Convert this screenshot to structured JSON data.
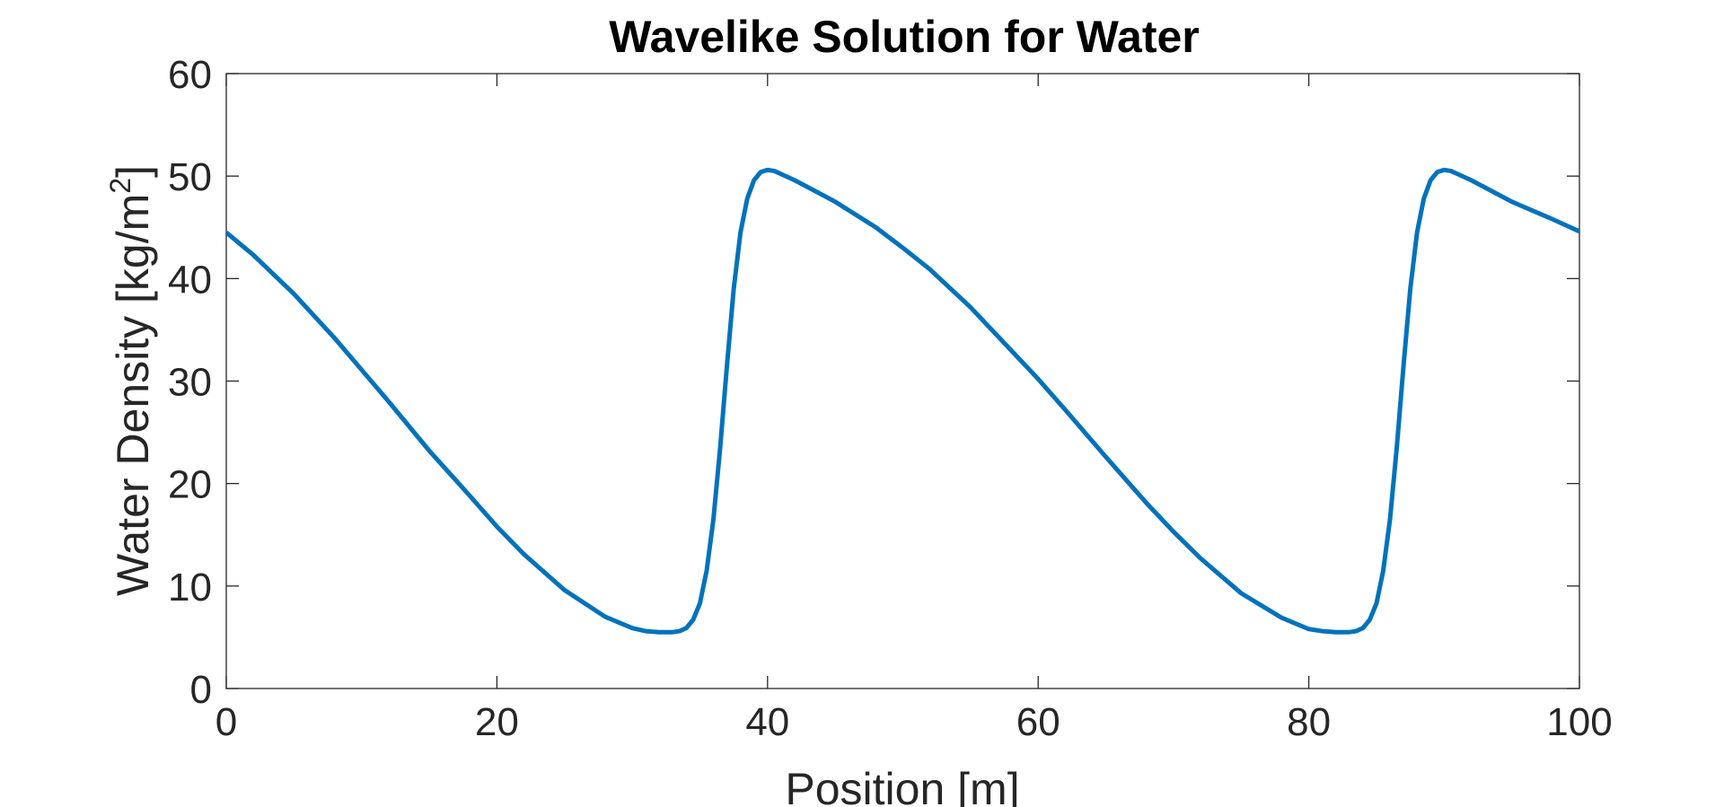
{
  "chart_data": {
    "type": "line",
    "title": "Wavelike Solution for Water",
    "xlabel": "Position [m]",
    "ylabel": "Water Density [kg/m",
    "ylabel_superscript": "2",
    "ylabel_suffix": "]",
    "xlim": [
      0,
      100
    ],
    "ylim": [
      0,
      60
    ],
    "xticks": [
      0,
      20,
      40,
      60,
      80,
      100
    ],
    "yticks": [
      0,
      10,
      20,
      30,
      40,
      50,
      60
    ],
    "xtick_labels": [
      "0",
      "20",
      "40",
      "60",
      "80",
      "100"
    ],
    "ytick_labels": [
      "0",
      "10",
      "20",
      "30",
      "40",
      "50",
      "60"
    ],
    "grid": false,
    "legend": "none",
    "series": [
      {
        "color": "#0072BD",
        "x": [
          0,
          2,
          5,
          8,
          10,
          12,
          15,
          18,
          20,
          22,
          25,
          28,
          30,
          31,
          32,
          33,
          33.5,
          34,
          34.5,
          35,
          35.5,
          36,
          36.5,
          37,
          37.5,
          38,
          38.5,
          39,
          39.5,
          40,
          40.5,
          41,
          42,
          45,
          48,
          50,
          52,
          55,
          58,
          60,
          62,
          65,
          68,
          70,
          72,
          75,
          78,
          80,
          81,
          82,
          83,
          83.5,
          84,
          84.5,
          85,
          85.5,
          86,
          86.5,
          87,
          87.5,
          88,
          88.5,
          89,
          89.5,
          90,
          90.5,
          91,
          92,
          95,
          98,
          100
        ],
        "y": [
          44.5,
          42.3,
          38.5,
          34.2,
          31.1,
          28.0,
          23.2,
          18.8,
          15.8,
          13.1,
          9.6,
          7.0,
          5.9,
          5.6,
          5.5,
          5.5,
          5.6,
          5.9,
          6.7,
          8.3,
          11.5,
          16.5,
          23.5,
          31.5,
          39.0,
          44.5,
          47.8,
          49.6,
          50.4,
          50.6,
          50.5,
          50.2,
          49.6,
          47.5,
          45.0,
          43.0,
          40.9,
          37.2,
          33.0,
          30.2,
          27.2,
          22.6,
          18.1,
          15.3,
          12.7,
          9.3,
          6.9,
          5.8,
          5.6,
          5.5,
          5.5,
          5.6,
          5.9,
          6.7,
          8.3,
          11.5,
          16.5,
          23.5,
          31.5,
          39.0,
          44.5,
          47.8,
          49.6,
          50.4,
          50.6,
          50.5,
          50.2,
          49.6,
          47.5,
          45.8,
          44.6
        ]
      }
    ]
  }
}
